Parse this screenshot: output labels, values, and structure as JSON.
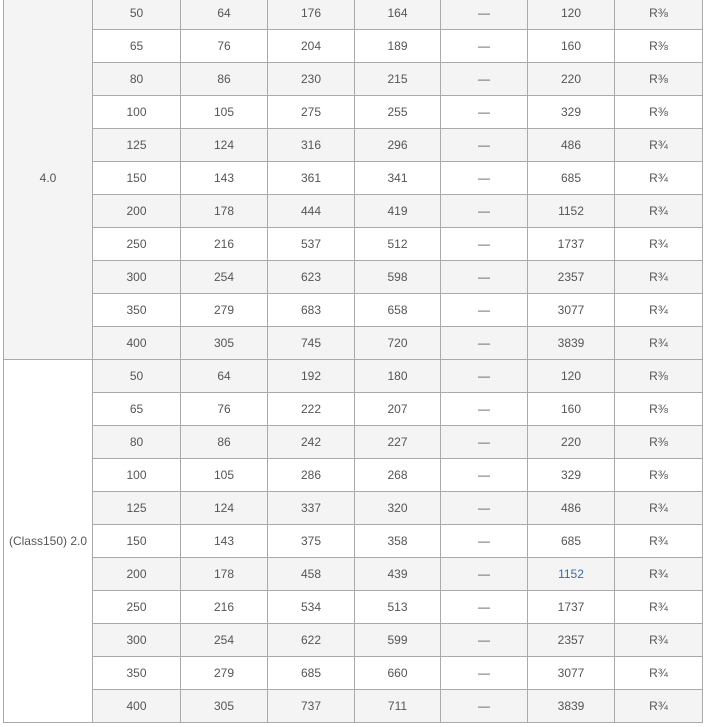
{
  "groups": [
    {
      "label": "4.0",
      "rows": [
        [
          "50",
          "64",
          "176",
          "164",
          "—",
          "120",
          "R⅜"
        ],
        [
          "65",
          "76",
          "204",
          "189",
          "—",
          "160",
          "R⅜"
        ],
        [
          "80",
          "86",
          "230",
          "215",
          "—",
          "220",
          "R⅜"
        ],
        [
          "100",
          "105",
          "275",
          "255",
          "—",
          "329",
          "R⅜"
        ],
        [
          "125",
          "124",
          "316",
          "296",
          "—",
          "486",
          "R¾"
        ],
        [
          "150",
          "143",
          "361",
          "341",
          "—",
          "685",
          "R¾"
        ],
        [
          "200",
          "178",
          "444",
          "419",
          "—",
          "1152",
          "R¾"
        ],
        [
          "250",
          "216",
          "537",
          "512",
          "—",
          "1737",
          "R¾"
        ],
        [
          "300",
          "254",
          "623",
          "598",
          "—",
          "2357",
          "R¾"
        ],
        [
          "350",
          "279",
          "683",
          "658",
          "—",
          "3077",
          "R¾"
        ],
        [
          "400",
          "305",
          "745",
          "720",
          "—",
          "3839",
          "R¾"
        ]
      ]
    },
    {
      "label": "(Class150) 2.0",
      "rows": [
        [
          "50",
          "64",
          "192",
          "180",
          "—",
          "120",
          "R⅜"
        ],
        [
          "65",
          "76",
          "222",
          "207",
          "—",
          "160",
          "R⅜"
        ],
        [
          "80",
          "86",
          "242",
          "227",
          "—",
          "220",
          "R⅜"
        ],
        [
          "100",
          "105",
          "286",
          "268",
          "—",
          "329",
          "R⅜"
        ],
        [
          "125",
          "124",
          "337",
          "320",
          "—",
          "486",
          "R¾"
        ],
        [
          "150",
          "143",
          "375",
          "358",
          "—",
          "685",
          "R¾"
        ],
        [
          "200",
          "178",
          "458",
          "439",
          "—",
          "1152",
          "R¾"
        ],
        [
          "250",
          "216",
          "534",
          "513",
          "—",
          "1737",
          "R¾"
        ],
        [
          "300",
          "254",
          "622",
          "599",
          "—",
          "2357",
          "R¾"
        ],
        [
          "350",
          "279",
          "685",
          "660",
          "—",
          "3077",
          "R¾"
        ],
        [
          "400",
          "305",
          "737",
          "711",
          "—",
          "3839",
          "R¾"
        ]
      ]
    }
  ],
  "highlight": {
    "group": 1,
    "row": 6,
    "col": 5,
    "color": "#3f6aa0"
  }
}
